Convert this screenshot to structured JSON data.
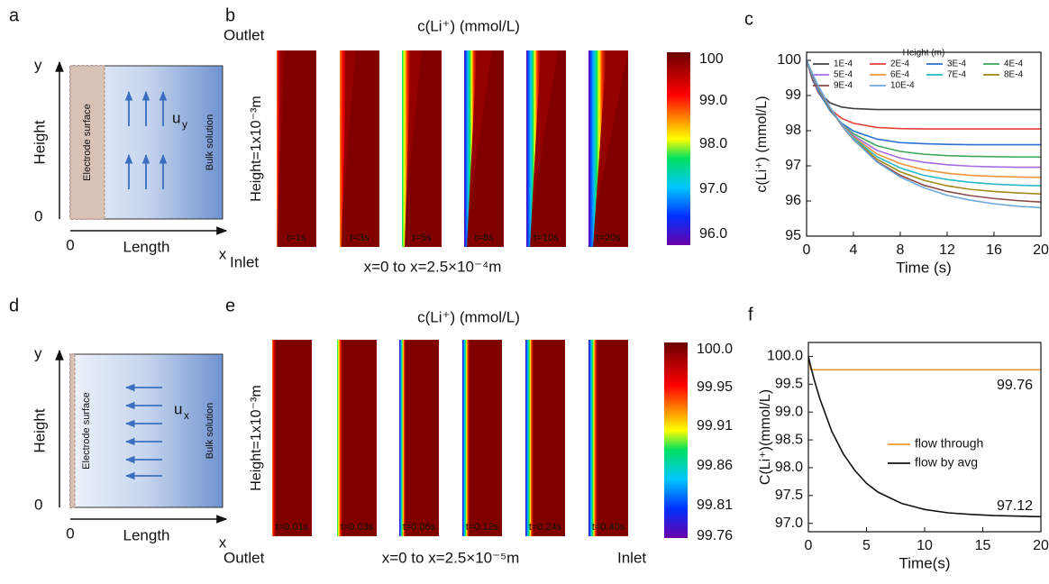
{
  "panel_labels": [
    "a",
    "b",
    "c",
    "d",
    "e",
    "f"
  ],
  "diagrams": [
    {
      "y_axis": "y",
      "zero_y": "0",
      "height": "Height",
      "zero_x": "0",
      "length": "Length",
      "x_axis": "x",
      "electrode": "Electrode surface",
      "bulk": "Bulk solution",
      "velocity": "u",
      "velocity_sub": "y"
    },
    {
      "y_axis": "y",
      "zero_y": "0",
      "height": "Height",
      "zero_x": "0",
      "length": "Length",
      "x_axis": "x",
      "electrode": "Electrode surface",
      "bulk": "Bulk solution",
      "velocity": "u",
      "velocity_sub": "x"
    }
  ],
  "heatmaps": [
    {
      "title": "c(Li⁺) (mmol/L)",
      "outlet": "Outlet",
      "inlet": "Inlet",
      "height_label": "Height=1x10⁻³m",
      "width_label": "x=0 to x=2.5×10⁻⁴m",
      "times": [
        "t=1s",
        "t=3s",
        "t=5s",
        "t=8s",
        "t=10s",
        "t=20s"
      ],
      "colorbar": [
        "100",
        "99.0",
        "98.0",
        "97.0",
        "96.0"
      ]
    },
    {
      "title": "c(Li⁺) (mmol/L)",
      "outlet": "Outlet",
      "inlet": "Inlet",
      "height_label": "Height=1x10⁻³m",
      "width_label": "x=0 to x=2.5×10⁻⁵m",
      "times": [
        "t=0.01s",
        "t=0.03s",
        "t=0.06s",
        "t=0.12s",
        "t=0.24s",
        "t=0.40s"
      ],
      "colorbar": [
        "100.0",
        "99.95",
        "99.91",
        "99.86",
        "99.81",
        "99.76"
      ]
    }
  ],
  "chart_data": [
    {
      "type": "line",
      "x_label": "Time (s)",
      "y_label": "c(Li⁺) (mmol/L)",
      "legend_title": "Height (m)",
      "xlim": [
        0,
        20
      ],
      "xticks": [
        0,
        4,
        8,
        12,
        16,
        20
      ],
      "ylim": [
        95,
        100.23
      ],
      "yticks": [
        95,
        96,
        97,
        98,
        99,
        100
      ],
      "x": [
        0,
        0.5,
        1,
        2,
        3,
        4,
        6,
        8,
        10,
        12,
        14,
        16,
        18,
        20
      ],
      "series": [
        {
          "name": "1E-4",
          "color": "#404040",
          "values": [
            100,
            99.45,
            99.12,
            98.79,
            98.67,
            98.63,
            98.6,
            98.6,
            98.6,
            98.6,
            98.6,
            98.6,
            98.6,
            98.6
          ]
        },
        {
          "name": "2E-4",
          "color": "#e8413b",
          "values": [
            100,
            99.48,
            99.09,
            98.61,
            98.35,
            98.21,
            98.09,
            98.06,
            98.05,
            98.05,
            98.05,
            98.05,
            98.05,
            98.05
          ]
        },
        {
          "name": "3E-4",
          "color": "#2a6fd1",
          "values": [
            100,
            99.51,
            99.12,
            98.57,
            98.21,
            97.99,
            97.76,
            97.66,
            97.63,
            97.61,
            97.6,
            97.6,
            97.6,
            97.6
          ]
        },
        {
          "name": "4E-4",
          "color": "#3fa65a",
          "values": [
            100,
            99.55,
            99.18,
            98.6,
            98.19,
            97.91,
            97.57,
            97.41,
            97.33,
            97.29,
            97.27,
            97.26,
            97.25,
            97.25
          ]
        },
        {
          "name": "5E-4",
          "color": "#a36be0",
          "values": [
            100,
            99.57,
            99.2,
            98.62,
            98.18,
            97.86,
            97.44,
            97.22,
            97.1,
            97.03,
            96.99,
            96.97,
            96.96,
            96.96
          ]
        },
        {
          "name": "6E-4",
          "color": "#f0953a",
          "values": [
            100,
            99.59,
            99.23,
            98.63,
            98.17,
            97.82,
            97.34,
            97.06,
            96.89,
            96.79,
            96.73,
            96.7,
            96.68,
            96.67
          ]
        },
        {
          "name": "7E-4",
          "color": "#2ab8c8",
          "values": [
            100,
            99.6,
            99.24,
            98.64,
            98.16,
            97.79,
            97.26,
            96.94,
            96.73,
            96.61,
            96.53,
            96.48,
            96.45,
            96.43
          ]
        },
        {
          "name": "8E-4",
          "color": "#a08a1a",
          "values": [
            100,
            99.6,
            99.25,
            98.64,
            98.16,
            97.76,
            97.19,
            96.83,
            96.59,
            96.43,
            96.33,
            96.27,
            96.23,
            96.2
          ]
        },
        {
          "name": "9E-4",
          "color": "#8b4a4a",
          "values": [
            100,
            99.61,
            99.26,
            98.65,
            98.15,
            97.74,
            97.13,
            96.73,
            96.45,
            96.27,
            96.15,
            96.07,
            96.01,
            95.97
          ]
        },
        {
          "name": "10E-4",
          "color": "#6fa8dc",
          "values": [
            100,
            99.62,
            99.27,
            98.67,
            98.17,
            97.75,
            97.11,
            96.68,
            96.38,
            96.16,
            96.02,
            95.92,
            95.85,
            95.81
          ]
        }
      ]
    },
    {
      "type": "line",
      "x_label": "Time(s)",
      "y_label": "C(Li⁺)(mmol/L)",
      "xlim": [
        0,
        20
      ],
      "xticks": [
        0,
        5,
        10,
        15,
        20
      ],
      "ylim": [
        96.85,
        100.25
      ],
      "yticks": [
        {
          "value": 97,
          "label": "97.0"
        },
        {
          "value": 97.5,
          "label": "97.5"
        },
        {
          "value": 98,
          "label": "98.0"
        },
        {
          "value": 98.5,
          "label": "98.5"
        },
        {
          "value": 99,
          "label": "99.0"
        },
        {
          "value": 99.5,
          "label": "99.5"
        },
        {
          "value": 100,
          "label": "100.0"
        }
      ],
      "x": [
        0,
        0.2,
        0.5,
        1,
        2,
        3,
        4,
        5,
        6,
        8,
        10,
        12,
        14,
        16,
        18,
        20
      ],
      "series": [
        {
          "name": "flow through",
          "color": "#f39a2b",
          "values": [
            100,
            99.76,
            99.76,
            99.76,
            99.76,
            99.76,
            99.76,
            99.76,
            99.76,
            99.76,
            99.76,
            99.76,
            99.76,
            99.76,
            99.76,
            99.76
          ]
        },
        {
          "name": "flow by avg",
          "color": "#111111",
          "values": [
            100,
            99.82,
            99.58,
            99.23,
            98.66,
            98.25,
            97.95,
            97.72,
            97.56,
            97.36,
            97.25,
            97.19,
            97.16,
            97.14,
            97.13,
            97.12
          ]
        }
      ],
      "annotations": [
        "99.76",
        "97.12"
      ]
    }
  ]
}
